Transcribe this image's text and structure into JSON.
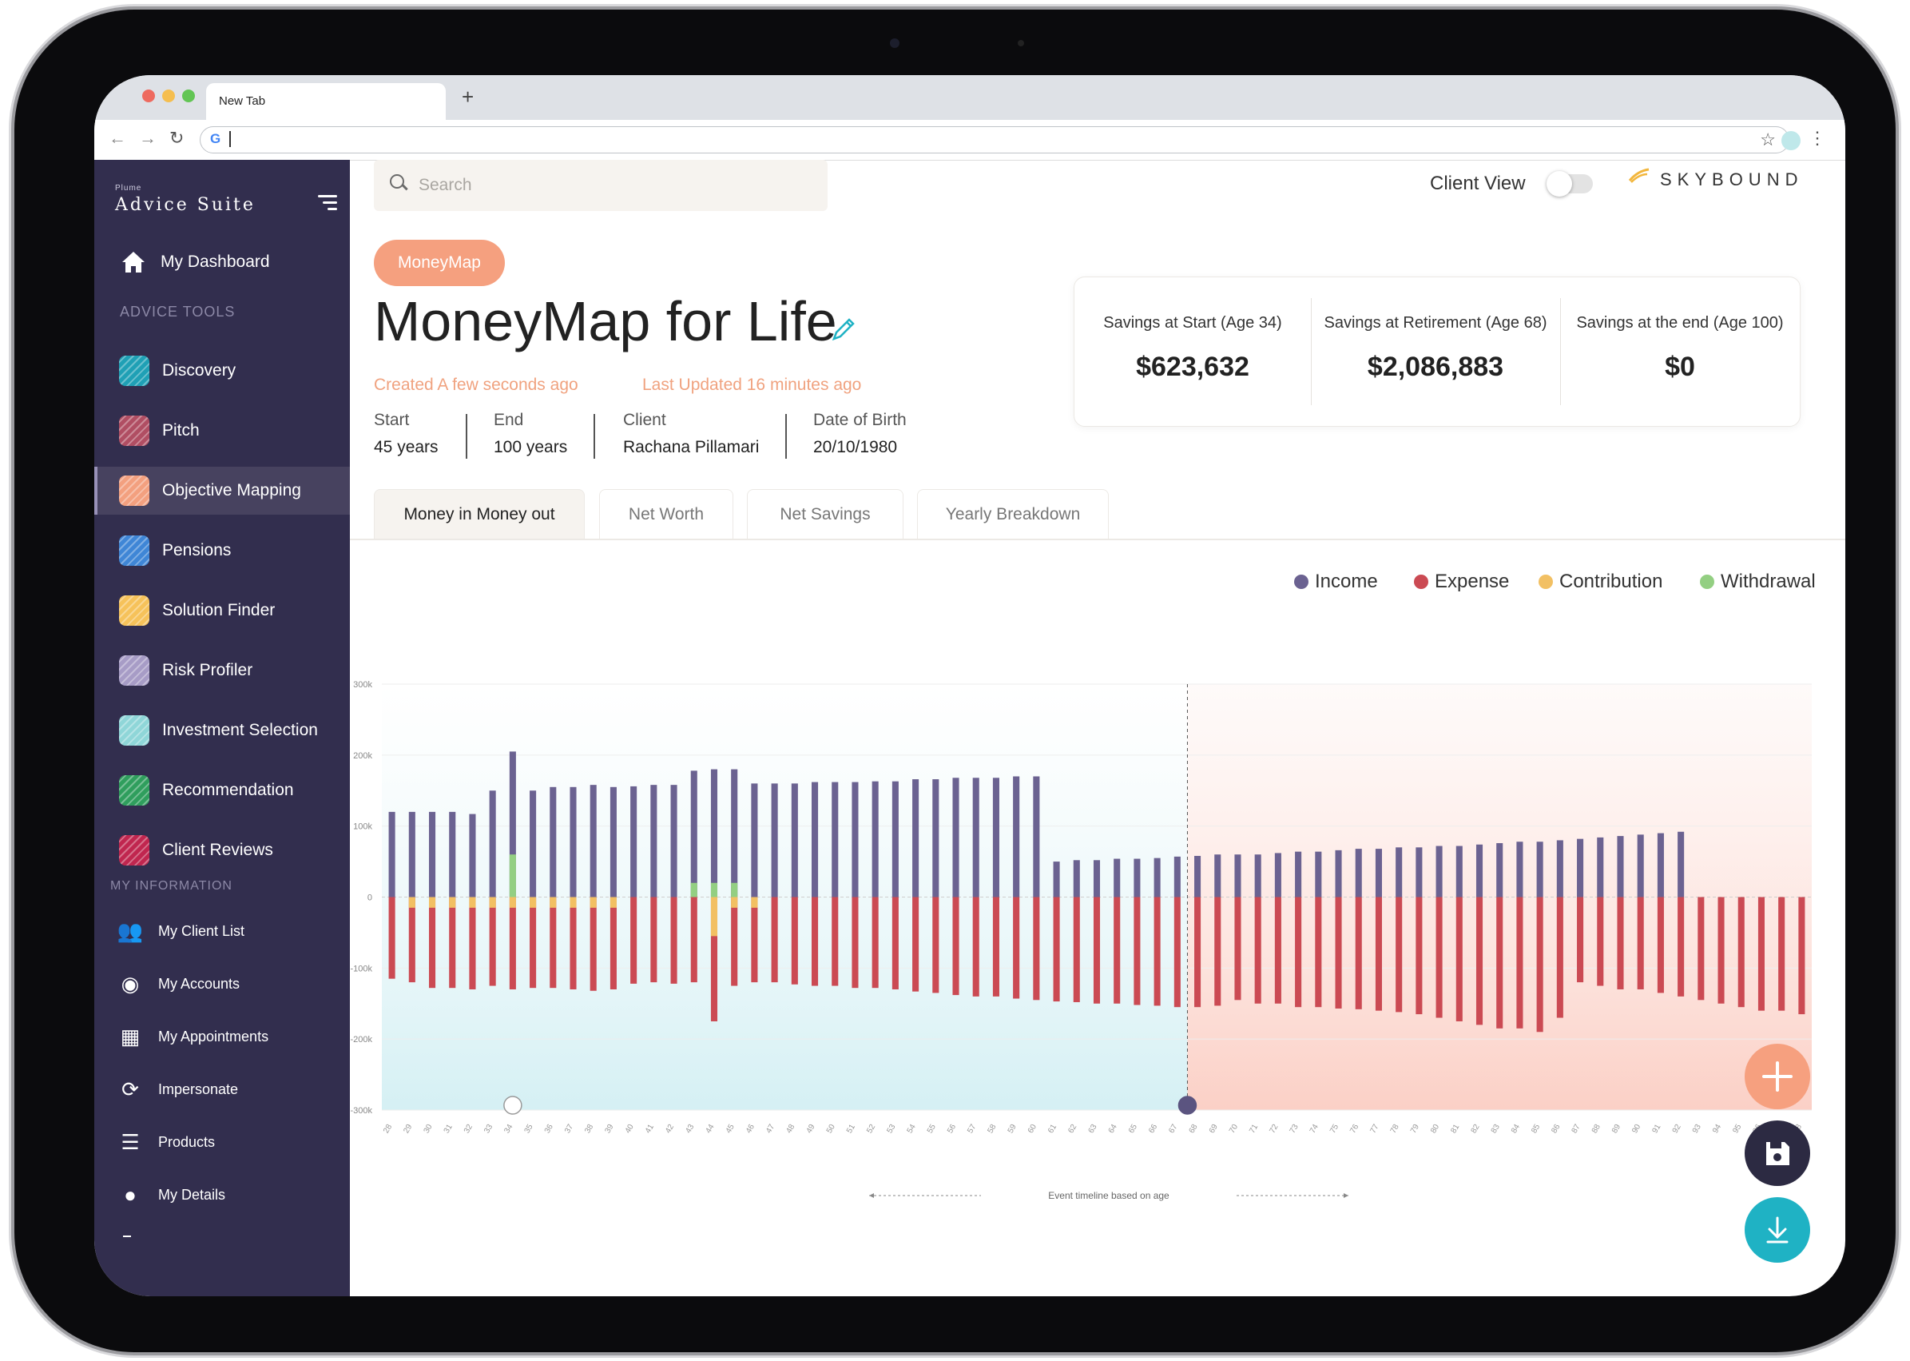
{
  "browser": {
    "tab_title": "New Tab",
    "new_tab_icon": "plus-icon",
    "address_value": "",
    "colors": {
      "tabbar": "#dee1e6"
    }
  },
  "sidebar": {
    "brand_small": "Plume",
    "brand": "Advice Suite",
    "dashboard": "My Dashboard",
    "advice_tools_heading": "ADVICE TOOLS",
    "tools": [
      {
        "label": "Discovery",
        "color": "#1fa0b5"
      },
      {
        "label": "Pitch",
        "color": "#b04e63"
      },
      {
        "label": "Objective Mapping",
        "color": "#f3a07f"
      },
      {
        "label": "Pensions",
        "color": "#3f86d6"
      },
      {
        "label": "Solution Finder",
        "color": "#f6c25a"
      },
      {
        "label": "Risk Profiler",
        "color": "#a79cc6"
      },
      {
        "label": "Investment Selection",
        "color": "#8fd6d8"
      },
      {
        "label": "Recommendation",
        "color": "#2f9e5d"
      },
      {
        "label": "Client Reviews",
        "color": "#c0264f"
      }
    ],
    "my_information_heading": "MY INFORMATION",
    "info": [
      {
        "label": "My Client List",
        "icon": "users-icon"
      },
      {
        "label": "My Accounts",
        "icon": "piggy-bank-icon"
      },
      {
        "label": "My Appointments",
        "icon": "calendar-icon"
      },
      {
        "label": "Impersonate",
        "icon": "refresh-icon"
      },
      {
        "label": "Products",
        "icon": "list-icon"
      },
      {
        "label": "My Details",
        "icon": "user-circle-icon"
      }
    ],
    "active_item": "Objective Mapping",
    "colors": {
      "bg": "#322e4e",
      "active": "#47425f"
    }
  },
  "header": {
    "search_placeholder": "Search",
    "client_view_label": "Client View",
    "client_view_on": false,
    "logo": "SKYBOUND"
  },
  "page": {
    "badge": "MoneyMap",
    "title": "MoneyMap for Life",
    "created": "Created  A few seconds ago",
    "updated": "Last Updated 16 minutes ago",
    "meta": [
      {
        "label": "Start",
        "value": "45 years"
      },
      {
        "label": "End",
        "value": "100 years"
      },
      {
        "label": "Client",
        "value": "Rachana Pillamari"
      },
      {
        "label": "Date of Birth",
        "value": "20/10/1980"
      }
    ],
    "savings": [
      {
        "label": "Savings at Start (Age 34)",
        "value": "$623,632"
      },
      {
        "label": "Savings at Retirement (Age 68)",
        "value": "$2,086,883"
      },
      {
        "label": "Savings at the end (Age 100)",
        "value": "$0"
      }
    ],
    "tabs": [
      "Money in Money out",
      "Net Worth",
      "Net Savings",
      "Yearly Breakdown"
    ],
    "active_tab": "Money in Money out",
    "accent": "#f5a07f"
  },
  "chart_data": {
    "type": "bar",
    "legend": [
      {
        "name": "Income",
        "color": "#6b6291"
      },
      {
        "name": "Expense",
        "color": "#cb4a53"
      },
      {
        "name": "Contribution",
        "color": "#f2c063"
      },
      {
        "name": "Withdrawal",
        "color": "#93cf82"
      }
    ],
    "legend_position": "top-right",
    "ylim": [
      -300000,
      300000
    ],
    "y_ticks": [
      "300k",
      "200k",
      "100k",
      "0",
      "-100k",
      "-200k",
      "-300k"
    ],
    "y_tick_values": [
      300000,
      200000,
      100000,
      0,
      -100000,
      -200000,
      -300000
    ],
    "x_start": 28,
    "x_end": 98,
    "xlabel": "Event timeline based on age",
    "retirement_age": 68,
    "event_markers": [
      {
        "age": 34,
        "icon": "flag-icon"
      },
      {
        "age": 68,
        "icon": "retire-icon"
      }
    ],
    "income": [
      120000,
      120000,
      120000,
      120000,
      117000,
      150000,
      205000,
      150000,
      155000,
      155000,
      158000,
      155000,
      156000,
      158000,
      158000,
      178000,
      180000,
      180000,
      160000,
      160000,
      160000,
      162000,
      162000,
      162000,
      163000,
      163000,
      166000,
      166000,
      168000,
      168000,
      168000,
      170000,
      170000,
      50000,
      52000,
      52000,
      54000,
      54000,
      55000,
      57000,
      58000,
      60000,
      60000,
      60000,
      62000,
      64000,
      64000,
      66000,
      68000,
      68000,
      70000,
      70000,
      72000,
      72000,
      74000,
      76000,
      78000,
      78000,
      80000,
      82000,
      84000,
      86000,
      88000,
      90000,
      92000,
      0,
      0,
      0,
      0,
      0,
      0
    ],
    "expense": [
      -115000,
      -120000,
      -128000,
      -128000,
      -130000,
      -125000,
      -130000,
      -128000,
      -128000,
      -130000,
      -132000,
      -130000,
      -122000,
      -120000,
      -122000,
      -120000,
      -175000,
      -125000,
      -120000,
      -120000,
      -123000,
      -125000,
      -125000,
      -128000,
      -128000,
      -130000,
      -133000,
      -135000,
      -138000,
      -140000,
      -140000,
      -143000,
      -145000,
      -147000,
      -148000,
      -150000,
      -150000,
      -152000,
      -153000,
      -155000,
      -155000,
      -153000,
      -145000,
      -150000,
      -150000,
      -155000,
      -155000,
      -157000,
      -158000,
      -160000,
      -162000,
      -165000,
      -170000,
      -175000,
      -180000,
      -185000,
      -185000,
      -190000,
      -170000,
      -120000,
      -125000,
      -130000,
      -130000,
      -135000,
      -140000,
      -145000,
      -150000,
      -155000,
      -160000,
      -160000,
      -165000
    ],
    "contribution": [
      0,
      -15000,
      -15000,
      -15000,
      -15000,
      -15000,
      -15000,
      -15000,
      -15000,
      -15000,
      -15000,
      -15000,
      0,
      0,
      0,
      0,
      -55000,
      -15000,
      -15000,
      0,
      0,
      0,
      0,
      0,
      0,
      0,
      0,
      0,
      0,
      0,
      0,
      0,
      0,
      0,
      0,
      0,
      0,
      0,
      0,
      0,
      0,
      0,
      0,
      0,
      0,
      0,
      0,
      0,
      0,
      0,
      0,
      0,
      0,
      0,
      0,
      0,
      0,
      0,
      0,
      0,
      0,
      0,
      0,
      0,
      0,
      0,
      0,
      0,
      0,
      0,
      0
    ],
    "withdrawal": [
      0,
      0,
      0,
      0,
      0,
      0,
      60000,
      0,
      0,
      0,
      0,
      0,
      0,
      0,
      0,
      20000,
      20000,
      20000,
      0,
      0,
      0,
      0,
      0,
      0,
      0,
      0,
      0,
      0,
      0,
      0,
      0,
      0,
      0,
      0,
      0,
      0,
      0,
      0,
      0,
      0,
      0,
      0,
      0,
      0,
      0,
      0,
      0,
      0,
      0,
      0,
      0,
      0,
      0,
      0,
      0,
      0,
      0,
      0,
      0,
      0,
      0,
      0,
      0,
      0,
      0,
      0,
      0,
      0,
      0,
      0,
      0
    ]
  },
  "actions": {
    "add": "plus-icon",
    "save": "save-icon",
    "download": "download-icon",
    "colors": {
      "add": "#f6a07f",
      "save": "#2c2a42",
      "download": "#1fb2c4"
    }
  }
}
